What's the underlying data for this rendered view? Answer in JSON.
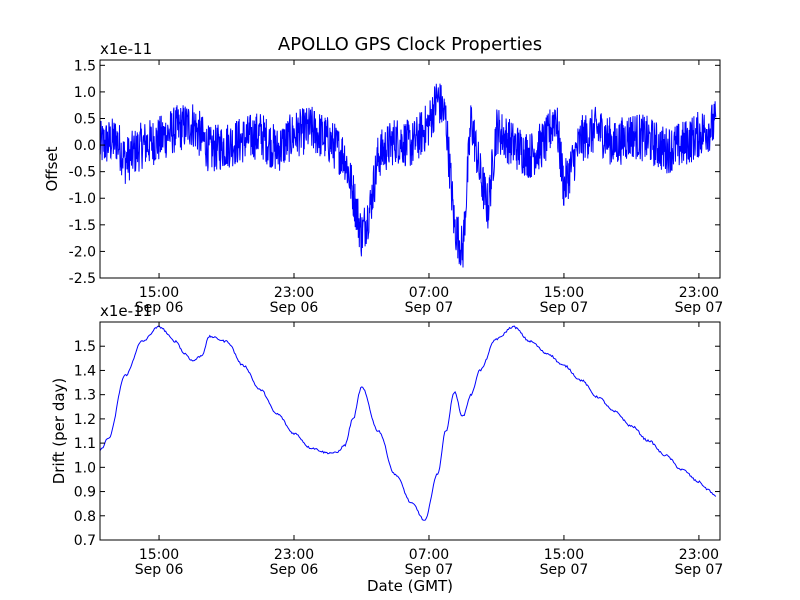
{
  "figure": {
    "title": "APOLLO GPS Clock Properties",
    "xlabel": "Date (GMT)"
  },
  "chart_data": [
    {
      "type": "line",
      "title": "APOLLO GPS Clock Properties",
      "ylabel": "Offset",
      "yscale_label": "x1e-11",
      "ylim": [
        -2.5,
        1.6
      ],
      "yticks": [
        -2.5,
        -2.0,
        -1.5,
        -1.0,
        -0.5,
        0.0,
        0.5,
        1.0,
        1.5
      ],
      "yticklabels": [
        "-2.5",
        "-2.0",
        "-1.5",
        "-1.0",
        "-0.5",
        "0.0",
        "0.5",
        "1.0",
        "1.5"
      ],
      "xlim": [
        "2013-09-06 11:30",
        "2013-09-08 00:15"
      ],
      "xticks": [
        "2013-09-06 15:00",
        "2013-09-06 23:00",
        "2013-09-07 07:00",
        "2013-09-07 15:00",
        "2013-09-07 23:00"
      ],
      "xticklabels": [
        [
          "15:00",
          "Sep 06"
        ],
        [
          "23:00",
          "Sep 06"
        ],
        [
          "07:00",
          "Sep 07"
        ],
        [
          "15:00",
          "Sep 07"
        ],
        [
          "23:00",
          "Sep 07"
        ]
      ],
      "line_color": "#0000ff",
      "grid": false,
      "series": [
        {
          "x": [
            "2013-09-06 11:30",
            "2013-09-06 12:30",
            "2013-09-06 13:00",
            "2013-09-06 14:00",
            "2013-09-06 15:00",
            "2013-09-06 16:00",
            "2013-09-06 17:00",
            "2013-09-06 18:00",
            "2013-09-06 19:00",
            "2013-09-06 20:00",
            "2013-09-06 21:00",
            "2013-09-06 22:00",
            "2013-09-06 23:00",
            "2013-09-07 00:00",
            "2013-09-07 01:00",
            "2013-09-07 02:00",
            "2013-09-07 02:30",
            "2013-09-07 03:00",
            "2013-09-07 03:30",
            "2013-09-07 04:00",
            "2013-09-07 05:00",
            "2013-09-07 06:00",
            "2013-09-07 07:00",
            "2013-09-07 07:30",
            "2013-09-07 08:00",
            "2013-09-07 08:30",
            "2013-09-07 09:00",
            "2013-09-07 09:30",
            "2013-09-07 10:00",
            "2013-09-07 10:30",
            "2013-09-07 11:00",
            "2013-09-07 12:00",
            "2013-09-07 13:00",
            "2013-09-07 14:00",
            "2013-09-07 14:30",
            "2013-09-07 15:00",
            "2013-09-07 16:00",
            "2013-09-07 17:00",
            "2013-09-07 18:00",
            "2013-09-07 19:00",
            "2013-09-07 20:00",
            "2013-09-07 21:00",
            "2013-09-07 22:00",
            "2013-09-07 23:00",
            "2013-09-08 00:00"
          ],
          "y": [
            0.0,
            0.1,
            -0.3,
            0.0,
            0.1,
            0.3,
            0.4,
            -0.1,
            0.0,
            0.1,
            0.2,
            -0.1,
            0.2,
            0.3,
            0.1,
            -0.2,
            -0.9,
            -1.7,
            -1.2,
            -0.2,
            0.1,
            0.0,
            0.4,
            0.9,
            0.5,
            -1.5,
            -2.0,
            0.5,
            -0.5,
            -1.2,
            0.3,
            0.0,
            -0.2,
            0.1,
            0.6,
            -0.8,
            0.1,
            0.3,
            0.0,
            0.2,
            0.1,
            -0.1,
            0.0,
            0.2,
            0.4
          ]
        }
      ]
    },
    {
      "type": "line",
      "ylabel": "Drift (per day)",
      "yscale_label": "x1e-11",
      "xlabel": "Date (GMT)",
      "ylim": [
        0.7,
        1.6
      ],
      "yticks": [
        0.7,
        0.8,
        0.9,
        1.0,
        1.1,
        1.2,
        1.3,
        1.4,
        1.5
      ],
      "yticklabels": [
        "0.7",
        "0.8",
        "0.9",
        "1.0",
        "1.1",
        "1.2",
        "1.3",
        "1.4",
        "1.5"
      ],
      "xlim": [
        "2013-09-06 11:30",
        "2013-09-08 00:15"
      ],
      "xticks": [
        "2013-09-06 15:00",
        "2013-09-06 23:00",
        "2013-09-07 07:00",
        "2013-09-07 15:00",
        "2013-09-07 23:00"
      ],
      "xticklabels": [
        [
          "15:00",
          "Sep 06"
        ],
        [
          "23:00",
          "Sep 06"
        ],
        [
          "07:00",
          "Sep 07"
        ],
        [
          "15:00",
          "Sep 07"
        ],
        [
          "23:00",
          "Sep 07"
        ]
      ],
      "line_color": "#0000ff",
      "grid": false,
      "series": [
        {
          "x": [
            "2013-09-06 11:30",
            "2013-09-06 12:00",
            "2013-09-06 13:00",
            "2013-09-06 14:00",
            "2013-09-06 15:00",
            "2013-09-06 16:00",
            "2013-09-06 16:30",
            "2013-09-06 17:00",
            "2013-09-06 17:30",
            "2013-09-06 18:00",
            "2013-09-06 19:00",
            "2013-09-06 20:00",
            "2013-09-06 21:00",
            "2013-09-06 22:00",
            "2013-09-06 23:00",
            "2013-09-07 00:00",
            "2013-09-07 01:00",
            "2013-09-07 01:30",
            "2013-09-07 02:00",
            "2013-09-07 02:30",
            "2013-09-07 03:00",
            "2013-09-07 04:00",
            "2013-09-07 05:00",
            "2013-09-07 06:00",
            "2013-09-07 06:45",
            "2013-09-07 07:30",
            "2013-09-07 08:00",
            "2013-09-07 08:30",
            "2013-09-07 09:00",
            "2013-09-07 09:30",
            "2013-09-07 10:00",
            "2013-09-07 11:00",
            "2013-09-07 12:00",
            "2013-09-07 13:00",
            "2013-09-07 14:00",
            "2013-09-07 15:00",
            "2013-09-07 16:00",
            "2013-09-07 17:00",
            "2013-09-07 18:00",
            "2013-09-07 19:00",
            "2013-09-07 20:00",
            "2013-09-07 21:00",
            "2013-09-07 22:00",
            "2013-09-07 23:00",
            "2013-09-07 23:30",
            "2013-09-08 00:00"
          ],
          "y": [
            1.07,
            1.12,
            1.38,
            1.52,
            1.58,
            1.52,
            1.47,
            1.44,
            1.46,
            1.54,
            1.52,
            1.42,
            1.32,
            1.22,
            1.14,
            1.08,
            1.06,
            1.06,
            1.09,
            1.2,
            1.33,
            1.15,
            0.97,
            0.85,
            0.78,
            0.97,
            1.15,
            1.31,
            1.21,
            1.3,
            1.4,
            1.53,
            1.58,
            1.52,
            1.47,
            1.42,
            1.36,
            1.29,
            1.23,
            1.17,
            1.11,
            1.05,
            0.99,
            0.94,
            0.91,
            0.88
          ]
        }
      ]
    }
  ]
}
